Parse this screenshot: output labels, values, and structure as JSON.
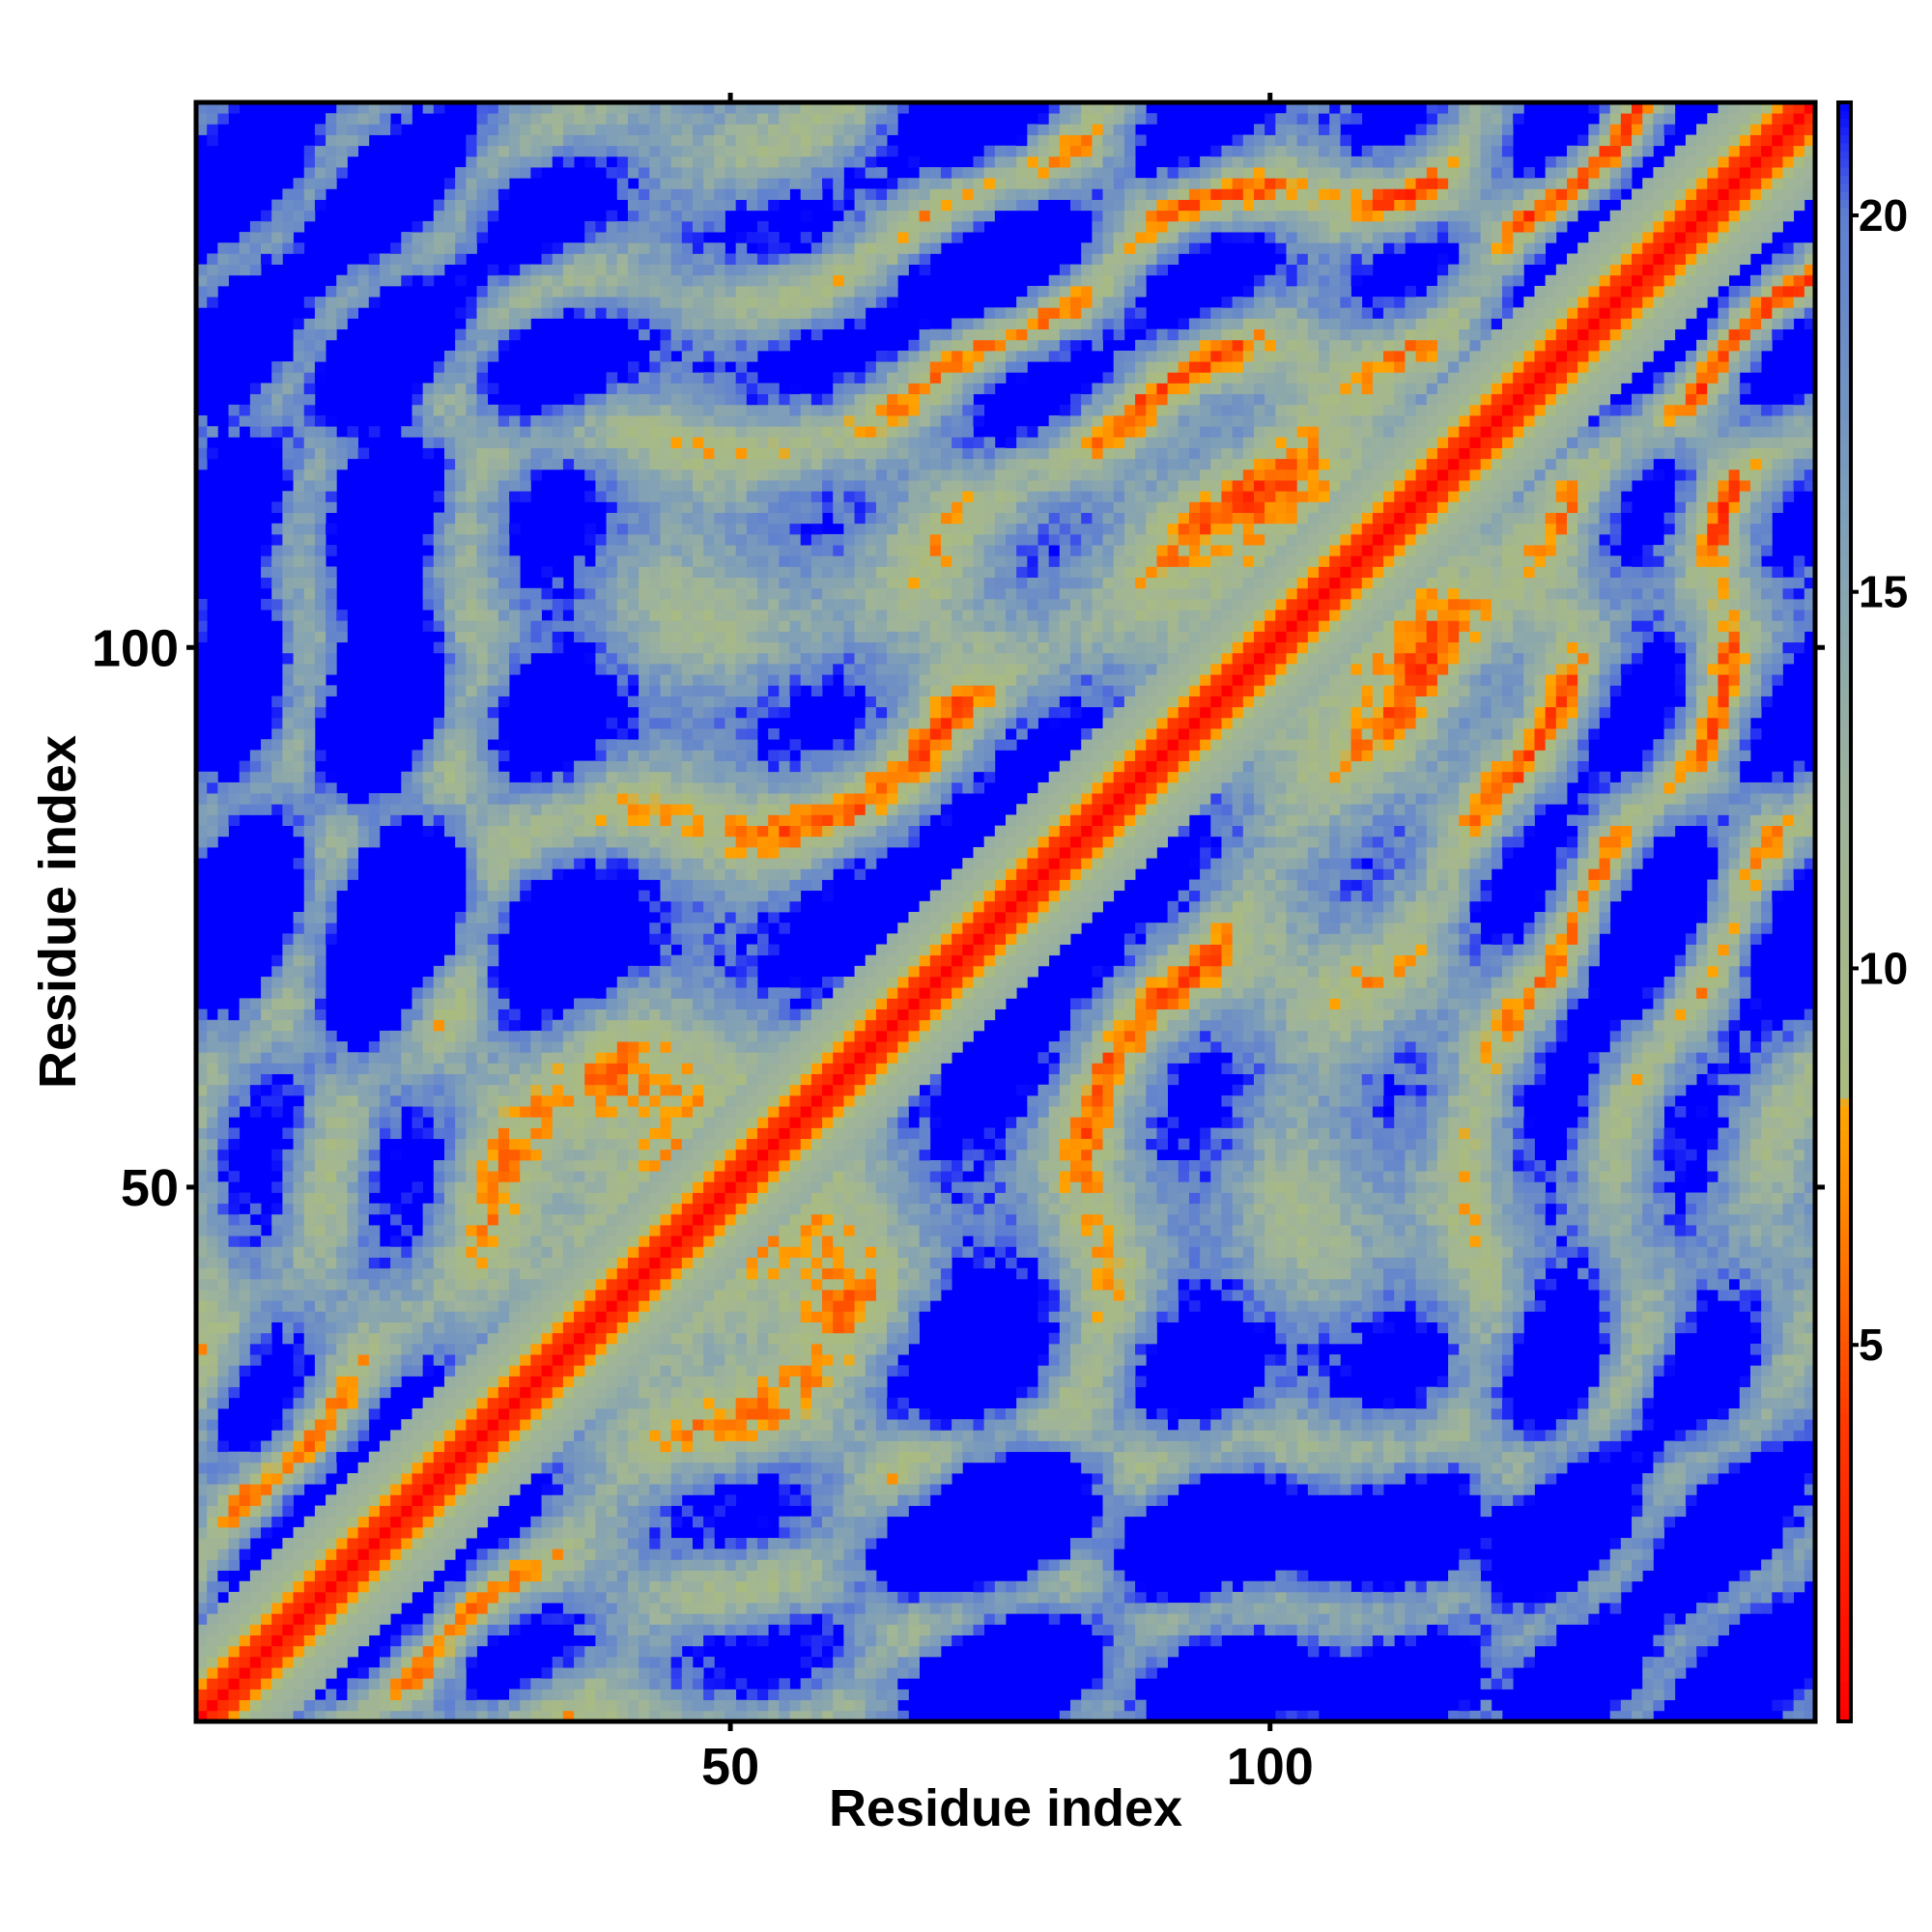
{
  "chart_data": {
    "type": "heatmap",
    "title": "",
    "xlabel": "Residue index",
    "ylabel": "Residue index",
    "x_range": [
      1,
      150
    ],
    "y_range": [
      1,
      150
    ],
    "x_ticks": [
      50,
      100
    ],
    "y_ticks": [
      50,
      100
    ],
    "colorbar": {
      "range": [
        0,
        21.5
      ],
      "ticks": [
        5,
        10,
        15,
        20
      ],
      "stops": [
        {
          "value": 0,
          "color": "#ff0000"
        },
        {
          "value": 4,
          "color": "#ff3a00"
        },
        {
          "value": 7,
          "color": "#ff8c00"
        },
        {
          "value": 8.2,
          "color": "#ffa500"
        },
        {
          "value": 8.3,
          "color": "#aabb80"
        },
        {
          "value": 12,
          "color": "#9fb49a"
        },
        {
          "value": 16,
          "color": "#7f9fb8"
        },
        {
          "value": 20,
          "color": "#5f80d0"
        },
        {
          "value": 20.8,
          "color": "#3040f0"
        },
        {
          "value": 21.5,
          "color": "#0000ff"
        }
      ]
    },
    "matrix_description": "Pairwise residue distance map (symmetric); low values along the diagonal, scattered mid-range contacts off-diagonal, saturated blue elsewhere.",
    "background_color": "#0000ff",
    "grid": false,
    "legend": "colorbar-right"
  }
}
